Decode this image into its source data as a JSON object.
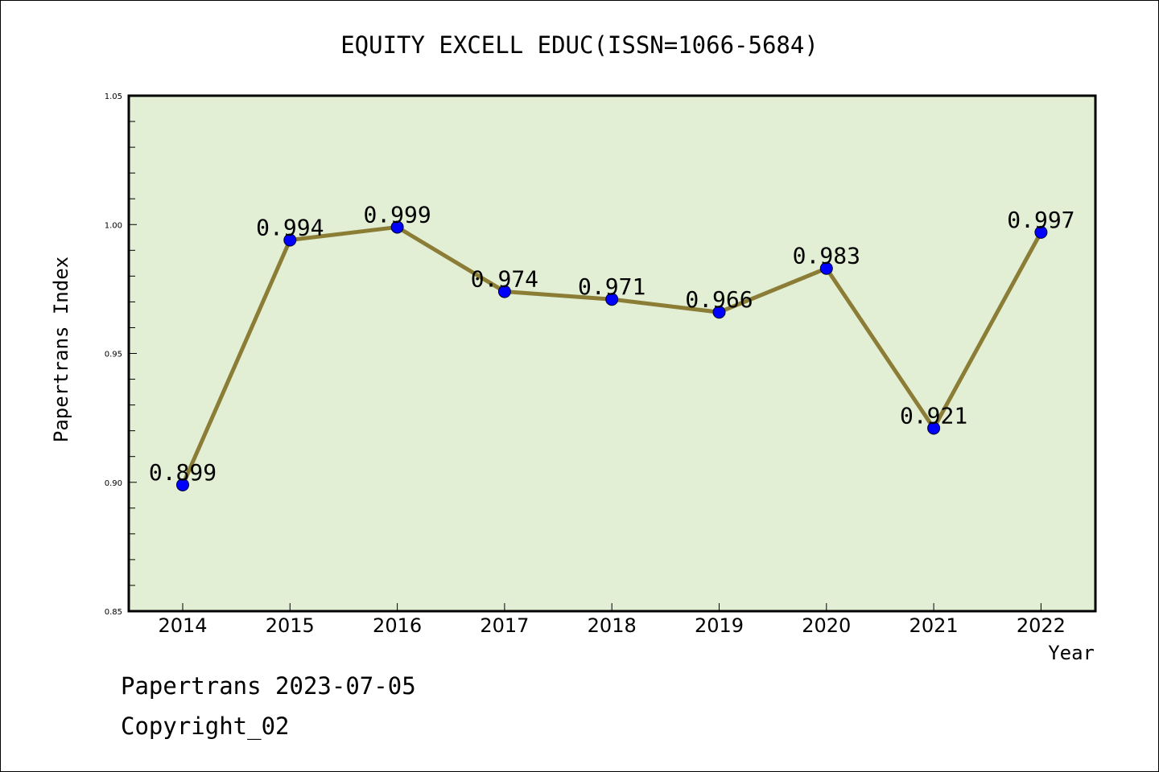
{
  "chart_data": {
    "type": "line",
    "title": "EQUITY EXCELL EDUC(ISSN=1066-5684)",
    "xlabel": "Year",
    "ylabel": "Papertrans Index",
    "categories": [
      "2014",
      "2015",
      "2016",
      "2017",
      "2018",
      "2019",
      "2020",
      "2021",
      "2022"
    ],
    "values": [
      0.899,
      0.994,
      0.999,
      0.974,
      0.971,
      0.966,
      0.983,
      0.921,
      0.997
    ],
    "data_labels": [
      "0.899",
      "0.994",
      "0.999",
      "0.974",
      "0.971",
      "0.966",
      "0.983",
      "0.921",
      "0.997"
    ],
    "ylim": [
      0.85,
      1.05
    ],
    "yticks": [
      0.85,
      0.9,
      0.95,
      1.0,
      1.05
    ],
    "ytick_labels": [
      "0.85",
      "0.90",
      "0.95",
      "1.00",
      "1.05"
    ],
    "grid": false,
    "colors": {
      "plot_background": "#e2efd4",
      "line": "#8b7d36",
      "marker": "#0000ff",
      "axis": "#000000"
    }
  },
  "footer": {
    "line1": "Papertrans 2023-07-05",
    "line2": "Copyright_02"
  }
}
